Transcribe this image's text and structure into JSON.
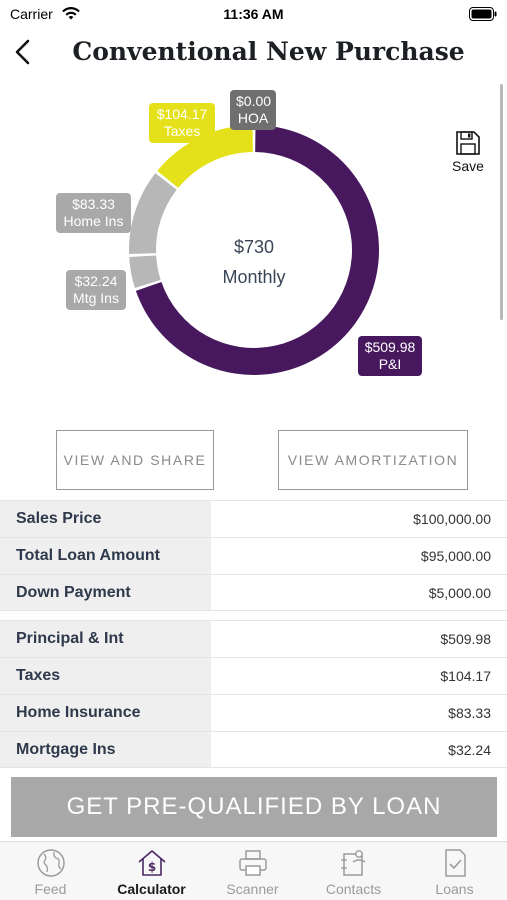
{
  "status_bar": {
    "carrier": "Carrier",
    "time": "11:36 AM"
  },
  "header": {
    "title": "Conventional New Purchase",
    "back_icon": "chevron-left-icon"
  },
  "chart_data": {
    "type": "pie",
    "categories": [
      "P&I",
      "Mtg Ins",
      "Home Ins",
      "Taxes",
      "HOA"
    ],
    "values": [
      509.98,
      32.24,
      83.33,
      104.17,
      0.0
    ],
    "value_labels": [
      "$509.98",
      "$32.24",
      "$83.33",
      "$104.17",
      "$0.00"
    ],
    "colors": [
      "#47185e",
      "#b7b7b7",
      "#b7b7b7",
      "#e4e01a",
      "#6f6f6f"
    ],
    "label_colors": [
      "#47185e",
      "#a9a9a9",
      "#a9a9a9",
      "#e4e01a",
      "#6f6f6f"
    ],
    "center_value": "$730",
    "center_label": "Monthly"
  },
  "save": {
    "label": "Save",
    "icon": "floppy-disk-icon"
  },
  "actions": {
    "view_share": "VIEW AND SHARE",
    "view_amortization": "VIEW AMORTIZATION"
  },
  "loan_table": [
    {
      "label": "Sales Price",
      "value": "$100,000.00"
    },
    {
      "label": "Total Loan Amount",
      "value": "$95,000.00"
    },
    {
      "label": "Down Payment",
      "value": "$5,000.00"
    }
  ],
  "payment_table": [
    {
      "label": "Principal & Int",
      "value": "$509.98"
    },
    {
      "label": "Taxes",
      "value": "$104.17"
    },
    {
      "label": "Home Insurance",
      "value": "$83.33"
    },
    {
      "label": "Mortgage Ins",
      "value": "$32.24"
    }
  ],
  "cta": {
    "label": "GET PRE-QUALIFIED BY LOAN"
  },
  "tabs": [
    {
      "label": "Feed",
      "icon": "globe-icon"
    },
    {
      "label": "Calculator",
      "icon": "house-dollar-icon",
      "active": true
    },
    {
      "label": "Scanner",
      "icon": "printer-icon"
    },
    {
      "label": "Contacts",
      "icon": "contacts-icon"
    },
    {
      "label": "Loans",
      "icon": "loan-document-icon"
    }
  ]
}
